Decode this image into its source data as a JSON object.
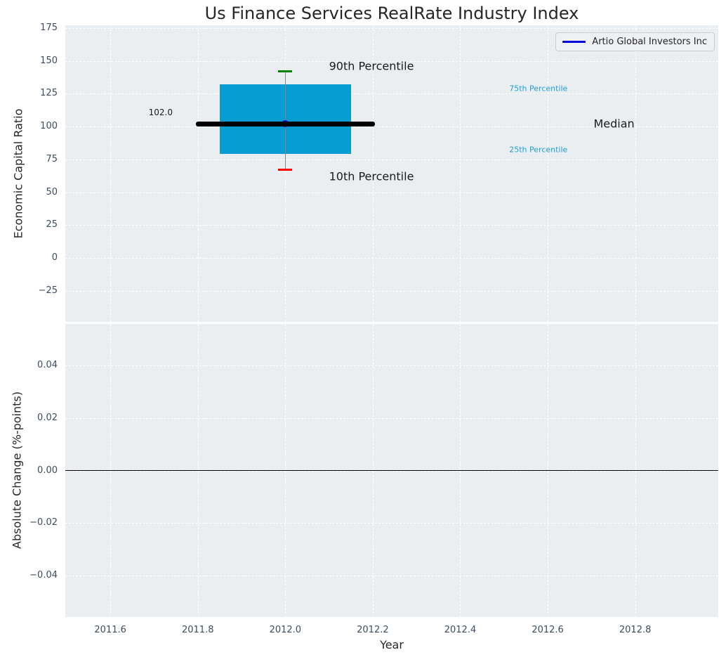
{
  "figure": {
    "title": "Us Finance Services RealRate Industry Index",
    "background": "#ffffff",
    "axes_background": "#eaeef1",
    "grid_color": "#ffffff",
    "tick_color": "#3c4b5f",
    "text_color": "#262626"
  },
  "legend": {
    "label": "Artio Global Investors Inc",
    "line_color": "#0000dd",
    "background": "#eef0f4",
    "border_color": "#cccccc"
  },
  "chart_data": [
    {
      "type": "boxplot",
      "panel": "top",
      "title": "Us Finance Services RealRate Industry Index",
      "ylabel": "Economic Capital Ratio",
      "xlim": [
        2011.497,
        2012.99
      ],
      "ylim": [
        -48.8,
        177.2
      ],
      "grid": true,
      "yticks": [
        175,
        150,
        125,
        100,
        75,
        50,
        25,
        0,
        -25
      ],
      "ytick_labels": [
        "175",
        "150",
        "125",
        "100",
        "75",
        "50",
        "25",
        "0",
        "−25"
      ],
      "box": {
        "x_center": 2012.0,
        "box_x": [
          2011.85,
          2012.15
        ],
        "p10": 67,
        "p25": 79,
        "median": 102,
        "p75": 132,
        "p90": 142,
        "median_line_x": [
          2011.795,
          2012.205
        ],
        "cap_x": [
          2011.984,
          2012.016
        ],
        "box_color": "#089dd2",
        "p90_color": "#008000",
        "p10_color": "#ff0000",
        "median_color": "#000000",
        "whisker_color": "#888888"
      },
      "series": [
        {
          "name": "Artio Global Investors Inc",
          "x": [
            2012.0
          ],
          "y": [
            102.0
          ],
          "color": "#0000dd"
        }
      ],
      "annotations": [
        {
          "name": "p90-label",
          "text": "90th Percentile",
          "x": 2012.1,
          "y": 146,
          "color": "#1a1a1a",
          "size": 16,
          "align": "left"
        },
        {
          "name": "p10-label",
          "text": "10th Percentile",
          "x": 2012.1,
          "y": 62,
          "color": "#1a1a1a",
          "size": 16,
          "align": "left"
        },
        {
          "name": "p75-label",
          "text": "75th Percentile",
          "x": 2012.512,
          "y": 129,
          "color": "#1f9ed6",
          "size": 11,
          "align": "left"
        },
        {
          "name": "p25-label",
          "text": "25th Percentile",
          "x": 2012.512,
          "y": 82.5,
          "color": "#1f9ed6",
          "size": 11,
          "align": "left"
        },
        {
          "name": "median-label",
          "text": "Median",
          "x": 2012.705,
          "y": 102.3,
          "color": "#1a1a1a",
          "size": 16,
          "align": "left"
        },
        {
          "name": "company-value-label",
          "text": "102.0",
          "x": 2011.715,
          "y": 111,
          "color": "#1a1a1a",
          "size": 12,
          "align": "center"
        }
      ]
    },
    {
      "type": "line",
      "panel": "bottom",
      "ylabel": "Absolute Change (%-points)",
      "xlabel": "Year",
      "xlim": [
        2011.497,
        2012.99
      ],
      "ylim": [
        -0.0557,
        0.0557
      ],
      "grid": true,
      "xticks": [
        2011.6,
        2011.8,
        2012.0,
        2012.2,
        2012.4,
        2012.6,
        2012.8
      ],
      "xtick_labels": [
        "2011.6",
        "2011.8",
        "2012.0",
        "2012.2",
        "2012.4",
        "2012.6",
        "2012.8"
      ],
      "yticks": [
        0.04,
        0.02,
        0.0,
        -0.02,
        -0.04
      ],
      "ytick_labels": [
        "0.04",
        "0.02",
        "0.00",
        "−0.02",
        "−0.04"
      ],
      "zero_line": {
        "y": 0.0,
        "color": "#000000"
      }
    }
  ]
}
